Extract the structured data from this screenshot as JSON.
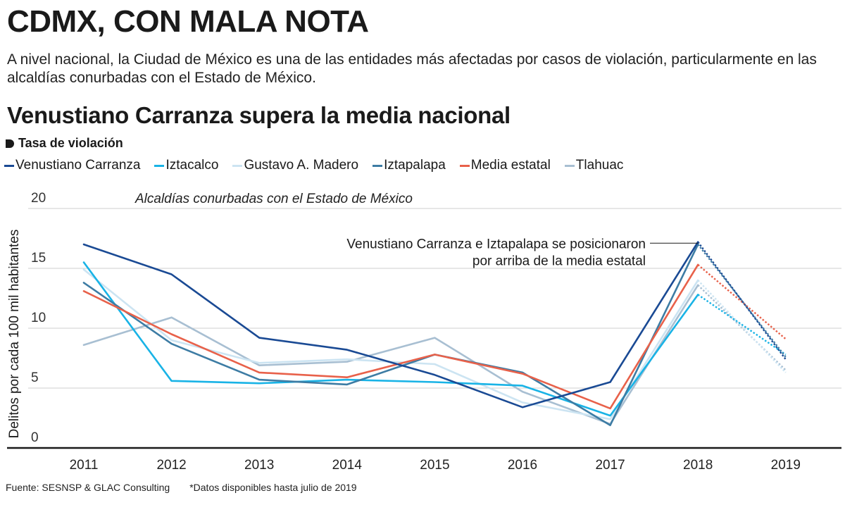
{
  "header": {
    "title": "CDMX, CON MALA NOTA",
    "dek": "A nivel nacional, la Ciudad de México es una de las entidades más afectadas por casos de violación, particularmente en las alcaldías conurbadas con el Estado de México.",
    "subtitle": "Venustiano Carranza supera la media nacional"
  },
  "measure_label": "Tasa de violación",
  "footer": {
    "source": "Fuente: SESNSP & GLAC Consulting",
    "note": "*Datos disponibles hasta julio de 2019"
  },
  "chart_data": {
    "type": "line",
    "title": "Venustiano Carranza supera la media nacional",
    "subtitle": "Alcaldías conurbadas con el Estado de México",
    "xlabel": "",
    "ylabel": "Delitos por cada 100 mil habitantes",
    "categories": [
      "2011",
      "2012",
      "2013",
      "2014",
      "2015",
      "2016",
      "2017",
      "2018",
      "2019"
    ],
    "ylim": [
      0,
      20
    ],
    "yticks": [
      0,
      5,
      10,
      15,
      20
    ],
    "ytick_labels": [
      "0",
      "5",
      "10",
      "15",
      "20"
    ],
    "grid": true,
    "legend_position": "top-left",
    "projected_from_index": 7,
    "annotation": {
      "lines": [
        "Venustiano Carranza e Iztapalapa se posicionaron",
        "por arriba de la media estatal"
      ],
      "year": "2018",
      "value": 17.1
    },
    "series": [
      {
        "name": "Tlahuac",
        "color": "#a8bfd2",
        "values": [
          8.6,
          10.9,
          6.9,
          7.2,
          9.2,
          4.7,
          2.0,
          13.6,
          6.5
        ]
      },
      {
        "name": "Gustavo A. Madero",
        "color": "#cce4f2",
        "values": [
          14.9,
          9.0,
          7.1,
          7.4,
          7.0,
          3.8,
          2.4,
          14.0,
          6.3
        ]
      },
      {
        "name": "Iztacalco",
        "color": "#19b3e6",
        "values": [
          15.5,
          5.6,
          5.4,
          5.7,
          5.5,
          5.2,
          2.7,
          12.8,
          7.8
        ]
      },
      {
        "name": "Iztapalapa",
        "color": "#3d7ca4",
        "values": [
          13.8,
          8.7,
          5.7,
          5.3,
          7.8,
          6.3,
          1.9,
          17.0,
          7.6
        ]
      },
      {
        "name": "Media estatal",
        "color": "#e8614a",
        "values": [
          13.1,
          9.5,
          6.3,
          5.9,
          7.8,
          6.2,
          3.3,
          15.3,
          9.1
        ]
      },
      {
        "name": "Venustiano Carranza",
        "color": "#1a4a94",
        "values": [
          17.0,
          14.5,
          9.2,
          8.2,
          6.1,
          3.4,
          5.5,
          17.2,
          7.4
        ]
      }
    ],
    "legend_order": [
      "Venustiano Carranza",
      "Iztacalco",
      "Gustavo A. Madero",
      "Iztapalapa",
      "Media estatal",
      "Tlahuac"
    ]
  }
}
